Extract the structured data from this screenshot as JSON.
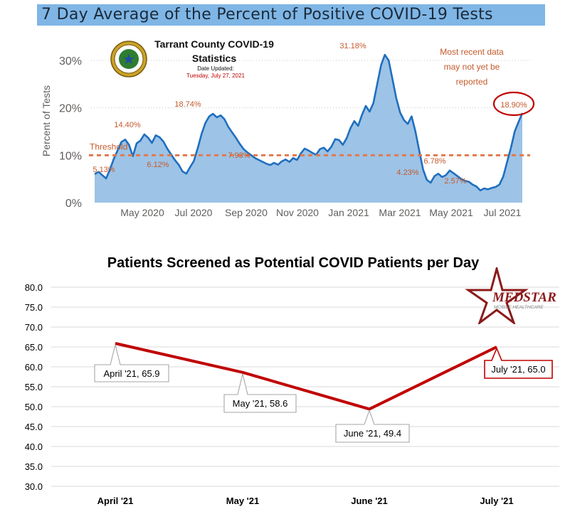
{
  "top": {
    "banner_title": "7 Day Average of the Percent of Positive COVID-19 Tests",
    "county_title_line1": "Tarrant County COVID-19",
    "county_title_line2": "Statistics",
    "date_label": "Date Updated:",
    "date_value": "Tuesday, July 27, 2021",
    "note_lines": [
      "Most recent data",
      "may not yet be",
      "reported"
    ],
    "threshold_label": "Threshold",
    "ylabel": "Percent of Tests"
  },
  "bottom": {
    "title": "Patients Screened as Potential COVID Patients per Day",
    "logo_text": "MEDSTAR",
    "logo_subtext": "MOBILE HEALTHCARE"
  },
  "colors": {
    "banner": "#7fb6e5",
    "area_fill": "#9dc3e6",
    "area_line": "#1f6fbf",
    "threshold": "#e07a4f",
    "annotation": "#c55a2b",
    "line2": "#c00000",
    "callout_red": "#c00000"
  },
  "chart_data": [
    {
      "type": "area",
      "title": "7 Day Average of the Percent of Positive COVID-19 Tests",
      "ylabel": "Percent of Tests",
      "ylim": [
        0,
        33
      ],
      "yticks": [
        "0%",
        "10%",
        "20%",
        "30%"
      ],
      "ytick_values": [
        0,
        10,
        20,
        30
      ],
      "xticks": [
        "May 2020",
        "Jul 2020",
        "Sep 2020",
        "Nov 2020",
        "Jan 2021",
        "Mar 2021",
        "May 2021",
        "Jul 2021"
      ],
      "threshold": 10,
      "series": [
        {
          "values": [
            6.0,
            6.5,
            5.8,
            5.1,
            7.0,
            9.2,
            11.0,
            12.8,
            13.3,
            12.2,
            9.8,
            12.5,
            13.1,
            14.4,
            13.7,
            12.6,
            14.2,
            13.8,
            12.9,
            11.4,
            10.2,
            9.0,
            8.0,
            6.6,
            6.1,
            7.5,
            8.8,
            11.5,
            14.5,
            16.8,
            18.2,
            18.74,
            18.0,
            18.4,
            17.6,
            16.0,
            14.8,
            13.7,
            12.4,
            11.3,
            10.6,
            10.0,
            9.4,
            9.0,
            8.6,
            8.2,
            7.93,
            8.4,
            8.0,
            8.7,
            9.1,
            8.6,
            9.4,
            9.0,
            10.4,
            11.4,
            11.0,
            10.5,
            10.1,
            11.3,
            11.6,
            10.8,
            11.8,
            13.4,
            13.2,
            12.2,
            13.6,
            15.7,
            17.2,
            16.2,
            18.5,
            20.4,
            19.2,
            21.0,
            25.0,
            29.0,
            31.18,
            30.0,
            26.0,
            22.0,
            19.0,
            17.4,
            16.6,
            18.2,
            15.0,
            11.0,
            7.0,
            4.8,
            4.2,
            5.6,
            6.1,
            5.4,
            5.8,
            6.78,
            6.2,
            5.6,
            5.0,
            4.6,
            4.4,
            3.8,
            3.4,
            2.57,
            3.0,
            2.8,
            3.1,
            3.3,
            3.8,
            5.5,
            8.5,
            11.5,
            15.0,
            17.0,
            18.9
          ],
          "data_labels": [
            {
              "index": 3,
              "text": "5.13%"
            },
            {
              "index": 13,
              "text": "14.40%"
            },
            {
              "index": 24,
              "text": "6.12%"
            },
            {
              "index": 31,
              "text": "18.74%"
            },
            {
              "index": 46,
              "text": "7.93%"
            },
            {
              "index": 76,
              "text": "31.18%"
            },
            {
              "index": 88,
              "text": "4.23%"
            },
            {
              "index": 93,
              "text": "6.78%"
            },
            {
              "index": 101,
              "text": "2.57%"
            },
            {
              "index": 112,
              "text": "18.90%"
            }
          ]
        }
      ]
    },
    {
      "type": "line",
      "title": "Patients Screened as Potential COVID Patients per Day",
      "categories": [
        "April '21",
        "May '21",
        "June '21",
        "July '21"
      ],
      "values": [
        65.9,
        58.6,
        49.4,
        65.0
      ],
      "point_labels": [
        "April '21, 65.9",
        "May '21, 58.6",
        "June '21, 49.4",
        "July '21, 65.0"
      ],
      "ylim": [
        30,
        80
      ],
      "yticks": [
        "30.0",
        "35.0",
        "40.0",
        "45.0",
        "50.0",
        "55.0",
        "60.0",
        "65.0",
        "70.0",
        "75.0",
        "80.0"
      ],
      "ytick_values": [
        30,
        35,
        40,
        45,
        50,
        55,
        60,
        65,
        70,
        75,
        80
      ]
    }
  ]
}
